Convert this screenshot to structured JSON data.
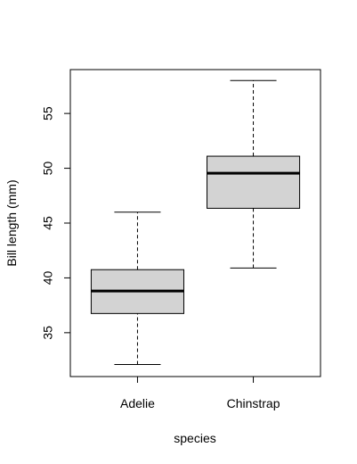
{
  "chart_data": {
    "type": "boxplot",
    "title": "",
    "xlabel": "species",
    "ylabel": "Bill length (mm)",
    "categories": [
      "Adelie",
      "Chinstrap"
    ],
    "boxes": [
      {
        "category": "Adelie",
        "whisker_low": 32.1,
        "q1": 36.75,
        "median": 38.8,
        "q3": 40.75,
        "whisker_high": 46.0
      },
      {
        "category": "Chinstrap",
        "whisker_low": 40.9,
        "q1": 46.35,
        "median": 49.55,
        "q3": 51.1,
        "whisker_high": 58.0
      }
    ],
    "yticks": [
      35,
      40,
      45,
      50,
      55
    ],
    "ylim": [
      31.0,
      59.0
    ],
    "colors": {
      "box_fill": "#d3d3d3",
      "stroke": "#000000"
    }
  }
}
